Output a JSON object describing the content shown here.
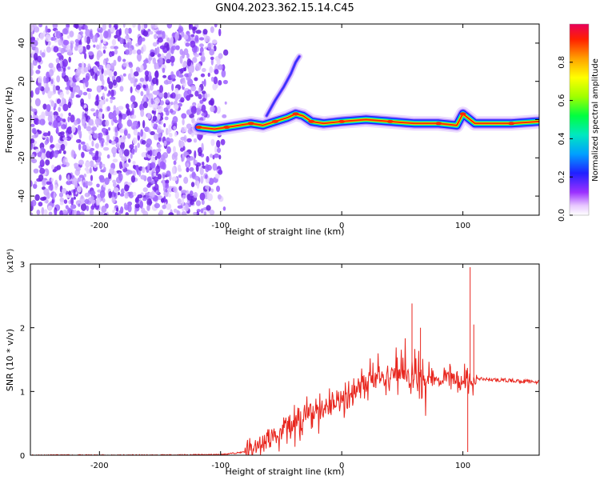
{
  "title": "GN04.2023.362.15.14.C45",
  "chart_data": [
    {
      "type": "heatmap",
      "xlabel": "Height of straight line (km)",
      "ylabel": "Frequency (Hz)",
      "xlim": [
        -257,
        163
      ],
      "ylim": [
        -50,
        50
      ],
      "xticks": [
        -200,
        -100,
        0,
        100
      ],
      "yticks": [
        -40,
        -20,
        0,
        20,
        40
      ],
      "colorbar": {
        "label": "Normalized spectral amplitude",
        "range": [
          0,
          1
        ],
        "ticks": [
          "0.0",
          "0.2",
          "0.4",
          "0.6",
          "0.8"
        ]
      },
      "noise_region_x": [
        -257,
        -100
      ],
      "ridge": [
        {
          "x": -118,
          "y": -4
        },
        {
          "x": -105,
          "y": -5
        },
        {
          "x": -95,
          "y": -4
        },
        {
          "x": -85,
          "y": -3
        },
        {
          "x": -75,
          "y": -2
        },
        {
          "x": -65,
          "y": -3
        },
        {
          "x": -55,
          "y": -1
        },
        {
          "x": -45,
          "y": 1
        },
        {
          "x": -38,
          "y": 3
        },
        {
          "x": -32,
          "y": 2
        },
        {
          "x": -25,
          "y": -1
        },
        {
          "x": -15,
          "y": -2
        },
        {
          "x": 0,
          "y": -1
        },
        {
          "x": 20,
          "y": 0
        },
        {
          "x": 40,
          "y": -1
        },
        {
          "x": 60,
          "y": -2
        },
        {
          "x": 80,
          "y": -2
        },
        {
          "x": 95,
          "y": -3
        },
        {
          "x": 100,
          "y": 3
        },
        {
          "x": 110,
          "y": -2
        },
        {
          "x": 140,
          "y": -2
        },
        {
          "x": 163,
          "y": -1
        }
      ],
      "branch": [
        {
          "x": -62,
          "y": 2
        },
        {
          "x": -55,
          "y": 10
        },
        {
          "x": -48,
          "y": 17
        },
        {
          "x": -42,
          "y": 24
        },
        {
          "x": -38,
          "y": 30
        },
        {
          "x": -35,
          "y": 33
        }
      ]
    },
    {
      "type": "line",
      "xlabel": "Height of straight line (km)",
      "ylabel": "SNR (10 * v/v)",
      "yscale_label": "(x10⁴)",
      "xlim": [
        -257,
        163
      ],
      "ylim": [
        0,
        3
      ],
      "xticks": [
        -200,
        -100,
        0,
        100
      ],
      "yticks": [
        0,
        1,
        2,
        3
      ],
      "series": [
        {
          "color": "#e8261e",
          "points": [
            {
              "x": -257,
              "y": 0.0
            },
            {
              "x": -150,
              "y": 0.0
            },
            {
              "x": -100,
              "y": 0.01
            },
            {
              "x": -80,
              "y": 0.05
            },
            {
              "x": -70,
              "y": 0.15
            },
            {
              "x": -60,
              "y": 0.25
            },
            {
              "x": -50,
              "y": 0.35
            },
            {
              "x": -40,
              "y": 0.5
            },
            {
              "x": -30,
              "y": 0.6
            },
            {
              "x": -20,
              "y": 0.7
            },
            {
              "x": -10,
              "y": 0.8
            },
            {
              "x": 0,
              "y": 0.9
            },
            {
              "x": 10,
              "y": 1.0
            },
            {
              "x": 20,
              "y": 1.1
            },
            {
              "x": 30,
              "y": 1.2
            },
            {
              "x": 40,
              "y": 1.25
            },
            {
              "x": 50,
              "y": 1.3
            },
            {
              "x": 60,
              "y": 1.25
            },
            {
              "x": 70,
              "y": 1.2
            },
            {
              "x": 80,
              "y": 1.2
            },
            {
              "x": 90,
              "y": 1.2
            },
            {
              "x": 100,
              "y": 1.2
            },
            {
              "x": 105,
              "y": 1.15
            },
            {
              "x": 110,
              "y": 1.2
            },
            {
              "x": 130,
              "y": 1.18
            },
            {
              "x": 150,
              "y": 1.16
            },
            {
              "x": 163,
              "y": 1.15
            }
          ],
          "peaks": [
            {
              "x": 58,
              "y": 2.38
            },
            {
              "x": 106,
              "y": 2.95
            },
            {
              "x": 104,
              "y": 0.05
            },
            {
              "x": 109,
              "y": 2.05
            },
            {
              "x": 65,
              "y": 2.0
            }
          ]
        }
      ]
    }
  ]
}
